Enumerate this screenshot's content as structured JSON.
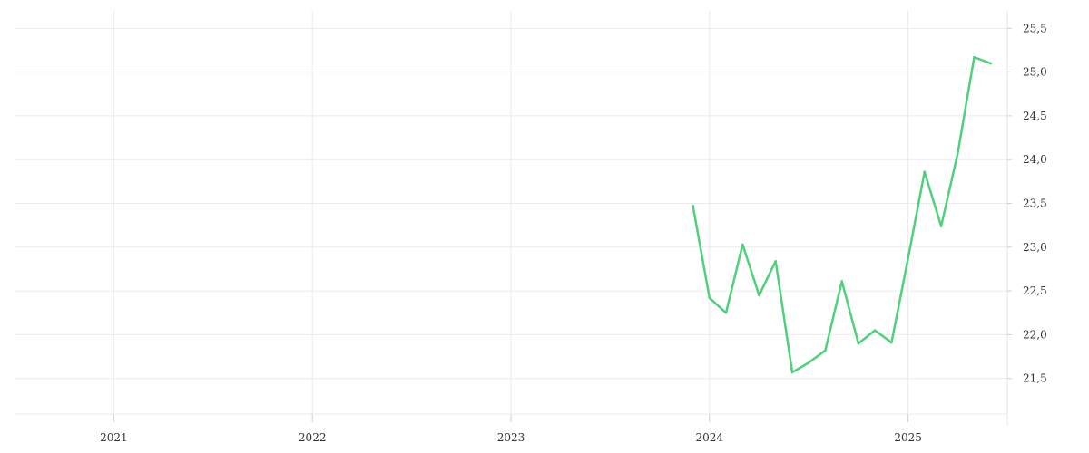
{
  "chart_data": {
    "type": "line",
    "title": "",
    "xlabel": "",
    "ylabel": "",
    "x_ticks": [
      {
        "label": "2021",
        "value": 2021.0
      },
      {
        "label": "2022",
        "value": 2022.0
      },
      {
        "label": "2023",
        "value": 2023.0
      },
      {
        "label": "2024",
        "value": 2024.0
      },
      {
        "label": "2025",
        "value": 2025.0
      }
    ],
    "y_ticks": [
      {
        "label": "21,5",
        "value": 21.5
      },
      {
        "label": "22,0",
        "value": 22.0
      },
      {
        "label": "22,5",
        "value": 22.5
      },
      {
        "label": "23,0",
        "value": 23.0
      },
      {
        "label": "23,5",
        "value": 23.5
      },
      {
        "label": "24,0",
        "value": 24.0
      },
      {
        "label": "24,5",
        "value": 24.5
      },
      {
        "label": "25,0",
        "value": 25.0
      },
      {
        "label": "25,5",
        "value": 25.5
      }
    ],
    "xlim": [
      2020.5,
      2025.5
    ],
    "ylim": [
      21.0,
      25.7
    ],
    "y_axis_side": "right",
    "grid": true,
    "legend": "none",
    "series": [
      {
        "color": "#4fd17c",
        "points": [
          {
            "x": "2023-12",
            "y": 23.47
          },
          {
            "x": "2024-01",
            "y": 22.42
          },
          {
            "x": "2024-02",
            "y": 22.25
          },
          {
            "x": "2024-03",
            "y": 23.03
          },
          {
            "x": "2024-04",
            "y": 22.45
          },
          {
            "x": "2024-05",
            "y": 22.84
          },
          {
            "x": "2024-06",
            "y": 21.57
          },
          {
            "x": "2024-07",
            "y": 21.68
          },
          {
            "x": "2024-08",
            "y": 21.82
          },
          {
            "x": "2024-09",
            "y": 22.61
          },
          {
            "x": "2024-10",
            "y": 21.9
          },
          {
            "x": "2024-11",
            "y": 22.05
          },
          {
            "x": "2024-12",
            "y": 21.91
          },
          {
            "x": "2025-01",
            "y": 22.87
          },
          {
            "x": "2025-02",
            "y": 23.86
          },
          {
            "x": "2025-03",
            "y": 23.24
          },
          {
            "x": "2025-04",
            "y": 24.07
          },
          {
            "x": "2025-05",
            "y": 25.17
          },
          {
            "x": "2025-06",
            "y": 25.1
          }
        ]
      }
    ]
  }
}
